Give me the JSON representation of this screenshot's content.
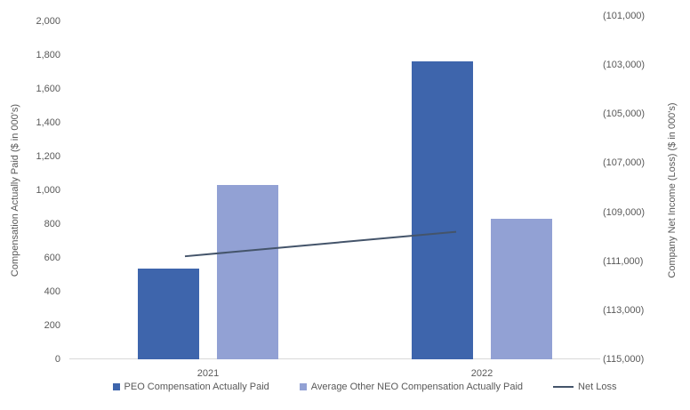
{
  "chart_data": {
    "type": "bar",
    "subtype": "bar-line-combo-dual-axis",
    "categories": [
      "2021",
      "2022"
    ],
    "series": [
      {
        "name": "PEO Compensation Actually Paid",
        "type": "bar",
        "axis": "left",
        "color": "#3E65AC",
        "values": [
          535,
          1765
        ]
      },
      {
        "name": "Average Other NEO Compensation Actually Paid",
        "type": "bar",
        "axis": "left",
        "color": "#92A1D4",
        "values": [
          1035,
          830
        ]
      },
      {
        "name": "Net Loss",
        "type": "line",
        "axis": "right",
        "color": "#44546A",
        "values": [
          -110800,
          -109800
        ]
      }
    ],
    "left_axis": {
      "label": "Compensation Actually Paid ($ in 000's)",
      "min": 0,
      "max": 2000,
      "step": 200,
      "tick_labels": [
        "2,000",
        "1,800",
        "1,600",
        "1,400",
        "1,200",
        "1,000",
        "800",
        "600",
        "400",
        "200",
        "0"
      ]
    },
    "right_axis": {
      "label": "Company Net Income (Loss) ($ in 000's)",
      "min": -115000,
      "max": -101000,
      "step": 2000,
      "tick_labels": [
        "(101,000)",
        "(103,000)",
        "(105,000)",
        "(107,000)",
        "(109,000)",
        "(111,000)",
        "(113,000)",
        "(115,000)"
      ]
    },
    "legend_position": "bottom",
    "grid": false,
    "title": "",
    "colors": {
      "text": "#595959",
      "axis_line": "#D9D9D9"
    }
  }
}
